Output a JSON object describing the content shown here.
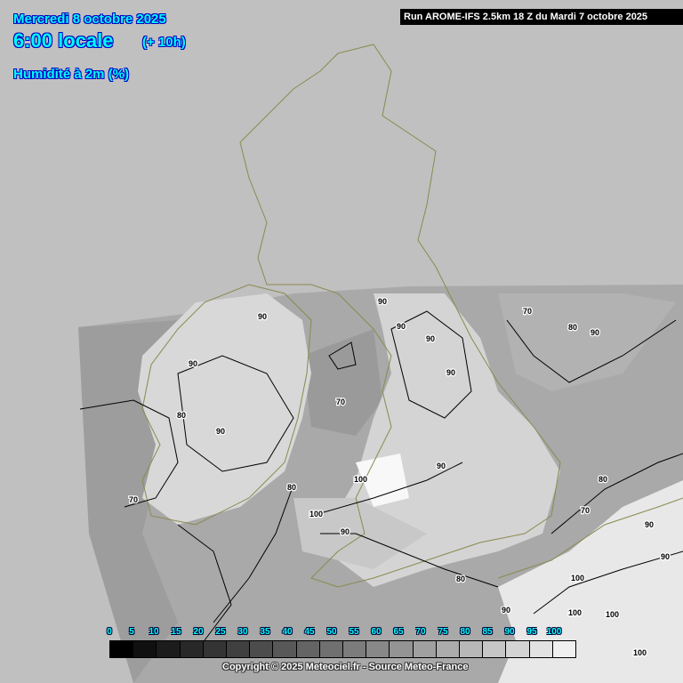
{
  "header": {
    "date": "Mercredi 8 octobre 2025",
    "time": "6:00 locale",
    "offset": "(+ 10h)",
    "parameter": "Humidité à 2m (%)"
  },
  "run_label": "Run AROME-IFS 2.5km 18 Z du Mardi 7 octobre 2025",
  "legend": {
    "ticks": [
      "0",
      "5",
      "10",
      "15",
      "20",
      "25",
      "30",
      "35",
      "40",
      "45",
      "50",
      "55",
      "60",
      "65",
      "70",
      "75",
      "80",
      "85",
      "90",
      "95",
      "100"
    ],
    "colors": [
      "#000000",
      "#101010",
      "#1c1c1c",
      "#282828",
      "#343434",
      "#404040",
      "#4c4c4c",
      "#585858",
      "#646464",
      "#707070",
      "#7c7c7c",
      "#888888",
      "#949494",
      "#a0a0a0",
      "#acacac",
      "#b8b8b8",
      "#c6c6c6",
      "#d4d4d4",
      "#e2e2e2",
      "#f0f0f0"
    ]
  },
  "contour_labels": [
    "90",
    "90",
    "70",
    "80",
    "90",
    "90",
    "90",
    "90",
    "90",
    "80",
    "70",
    "90",
    "90",
    "100",
    "80",
    "80",
    "70",
    "100",
    "70",
    "90",
    "90",
    "90",
    "80",
    "100",
    "100",
    "90",
    "100",
    "100"
  ],
  "copyright": "Copyright © 2025 Meteociel.fr - Source Meteo-France",
  "colors": {
    "background": "#c0c0c0",
    "header_text": "#00ffff",
    "coastline": "#8a8a50"
  }
}
